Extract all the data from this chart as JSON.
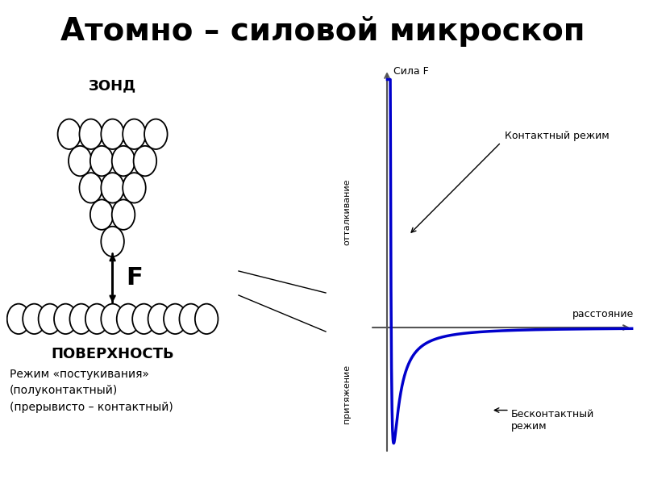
{
  "title": "Атомно – силовой микроскоп",
  "title_bg": "#FFE000",
  "title_fontsize": 28,
  "title_fontweight": "bold",
  "graph_bg": "#CCEECC",
  "graph_label_sila": "Сила F",
  "graph_label_rasstoyanie": "расстояние",
  "graph_label_ottalkivanie": "отталкивание",
  "graph_label_prityazhenie": "притяжение",
  "label_kontaktny": "Контактный режим",
  "label_beskontaktny": "Бесконтактный\nрежим",
  "label_zond": "ЗОНД",
  "label_poverkhnost": "ПОВЕРХНОСТЬ",
  "label_rezhim": "Режим «постукивания»\n(полуконтактный)\n(прерывисто – контактный)",
  "curve_color": "#0000CC",
  "axis_color": "#555555",
  "background_color": "#FFFFFF"
}
